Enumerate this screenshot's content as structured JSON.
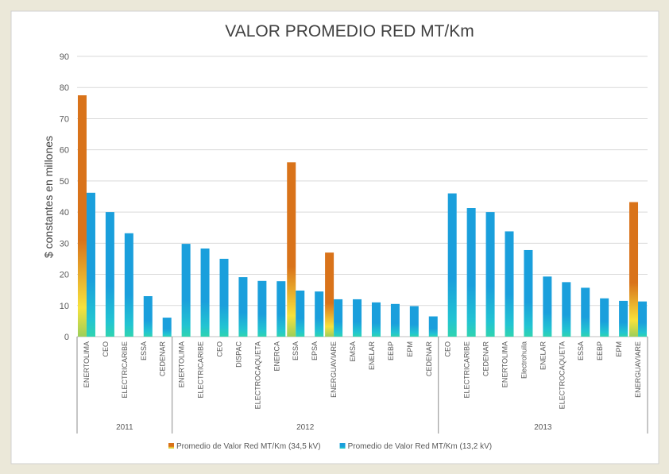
{
  "chart_data": {
    "type": "bar",
    "title": "VALOR PROMEDIO RED MT/Km",
    "y_label": "$ constantes en millones",
    "groups": [
      {
        "name": "2011",
        "categories": [
          "ENERTOLIMA",
          "CEO",
          "ELECTRICARIBE",
          "ESSA",
          "CEDENAR"
        ]
      },
      {
        "name": "2012",
        "categories": [
          "ENERTOLIMA",
          "ELECTRICARIBE",
          "CEO",
          "DISPAC",
          "ELECTROCAQUETA",
          "ENERCA",
          "ESSA",
          "EPSA",
          "ENERGUAVIARE",
          "EMSA",
          "ENELAR",
          "EEBP",
          "EPM",
          "CEDENAR"
        ]
      },
      {
        "name": "2013",
        "categories": [
          "CEO",
          "ELECTRICARIBE",
          "CEDENAR",
          "ENERTOLIMA",
          "Electrohuila",
          "ENELAR",
          "ELECTROCAQUETA",
          "ESSA",
          "EEBP",
          "EPM",
          "ENERGUAVIARE"
        ]
      }
    ],
    "series": [
      {
        "name": "Promedio de Valor Red MT/Km (34,5 kV)",
        "color": "#d9731a",
        "values": [
          77.5,
          null,
          null,
          null,
          null,
          null,
          null,
          null,
          null,
          null,
          null,
          56,
          null,
          27,
          null,
          null,
          null,
          null,
          null,
          null,
          null,
          null,
          null,
          null,
          null,
          null,
          null,
          null,
          null,
          43.2
        ]
      },
      {
        "name": "Promedio de Valor Red MT/Km (13,2 kV)",
        "color": "#1a9fdc",
        "values": [
          46.2,
          40,
          33.2,
          13,
          6.1,
          29.8,
          28.3,
          25,
          19.1,
          17.9,
          17.8,
          14.8,
          14.5,
          12,
          12,
          11,
          10.5,
          9.8,
          6.5,
          46,
          41.3,
          40,
          33.8,
          27.8,
          19.3,
          17.5,
          15.7,
          12.3,
          11.5,
          11.3
        ]
      }
    ],
    "ylim": [
      0,
      90
    ],
    "yticks": [
      0,
      10,
      20,
      30,
      40,
      50,
      60,
      70,
      80,
      90
    ],
    "grid": true,
    "legend": "bottom"
  }
}
